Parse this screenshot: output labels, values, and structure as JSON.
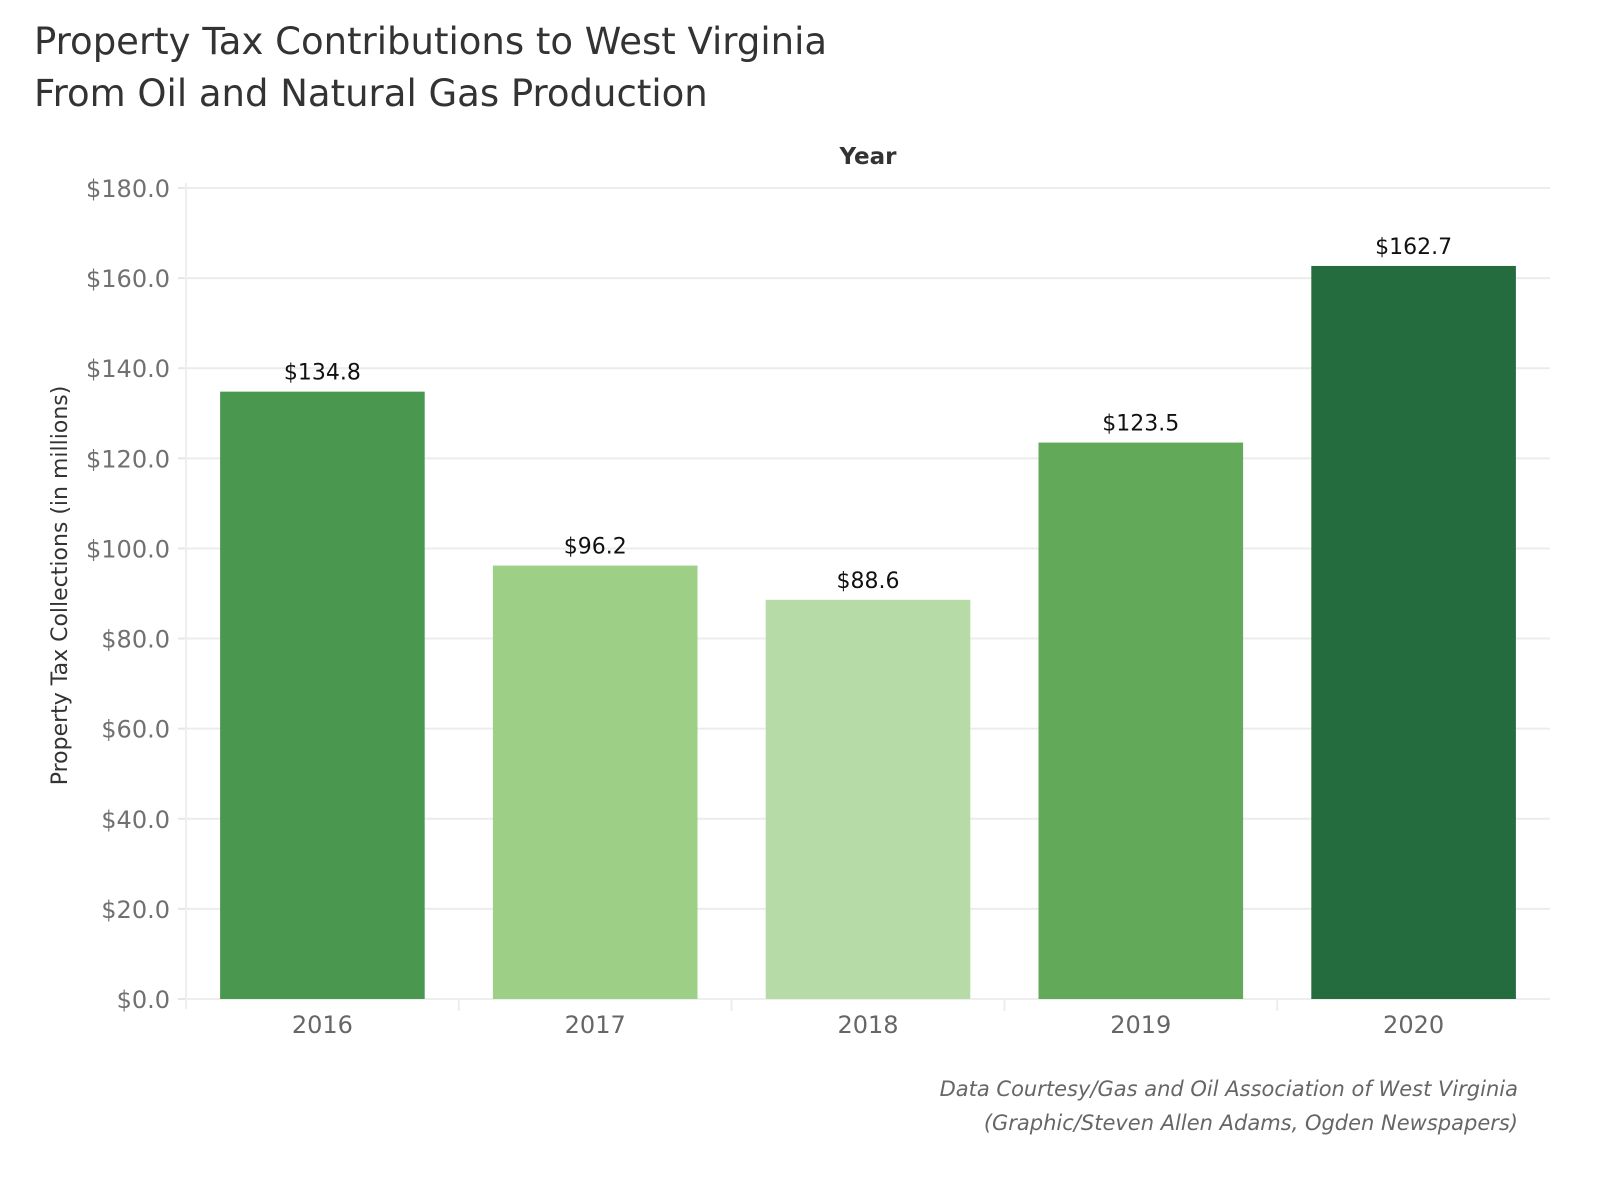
{
  "title_lines": [
    "Property Tax Contributions to West Virginia",
    "From Oil and Natural Gas Production"
  ],
  "credit_lines": [
    "Data Courtesy/Gas and Oil Association of West Virginia",
    "(Graphic/Steven Allen Adams, Ogden Newspapers)"
  ],
  "chart_data": {
    "type": "bar",
    "title": "Property Tax Contributions to West Virginia From Oil and Natural Gas Production",
    "xlabel": "Year",
    "xlabel_position": "top",
    "ylabel": "Property Tax Collections (in millions)",
    "categories": [
      "2016",
      "2017",
      "2018",
      "2019",
      "2020"
    ],
    "values": [
      134.8,
      96.2,
      88.6,
      123.5,
      162.7
    ],
    "data_labels": [
      "$134.8",
      "$96.2",
      "$88.6",
      "$123.5",
      "$162.7"
    ],
    "colors": [
      "#4a9850",
      "#9dcf87",
      "#b6dba6",
      "#62a95a",
      "#246b3d"
    ],
    "ylim": [
      0,
      180
    ],
    "yticks": [
      0,
      20,
      40,
      60,
      80,
      100,
      120,
      140,
      160,
      180
    ],
    "ytick_labels": [
      "$0.0",
      "$20.0",
      "$40.0",
      "$60.0",
      "$80.0",
      "$100.0",
      "$120.0",
      "$140.0",
      "$160.0",
      "$180.0"
    ],
    "grid": true,
    "legend": "none"
  }
}
